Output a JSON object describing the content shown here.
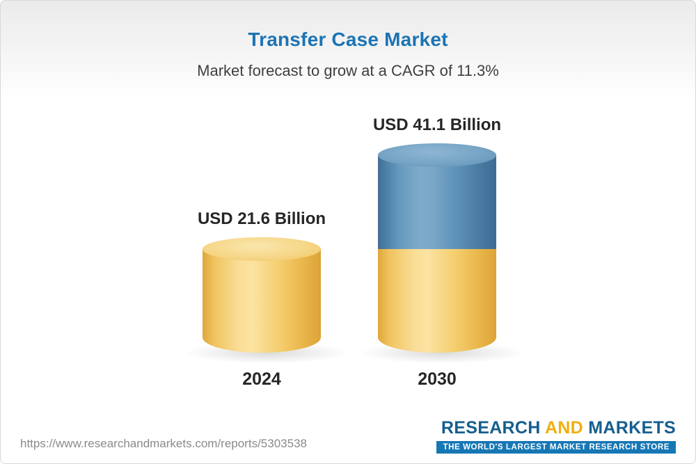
{
  "header": {
    "title": "Transfer Case Market",
    "subtitle": "Market forecast to grow at a CAGR of 11.3%"
  },
  "chart_data": {
    "type": "bar",
    "style": "3d-cylinder",
    "title": "Transfer Case Market",
    "subtitle": "Market forecast to grow at a CAGR of 11.3%",
    "cagr_percent": 11.3,
    "unit": "USD Billion",
    "categories": [
      "2024",
      "2030"
    ],
    "values": [
      21.6,
      41.1
    ],
    "value_labels": [
      "USD 21.6 Billion",
      "USD 41.1 Billion"
    ],
    "series_note": "2030 bar stacked: bottom segment equals 2024 value (yellow), top segment is growth (blue)",
    "colors": {
      "bar_2024": "#f3c75e",
      "bar_2030_growth": "#5f92b8",
      "title": "#1b74b4",
      "logo_blue": "#155e8f",
      "logo_gold": "#f1af0f"
    },
    "legend": "none",
    "grid": "off"
  },
  "footer": {
    "url": "https://www.researchandmarkets.com/reports/5303538",
    "logo": {
      "part1": "RESEARCH",
      "part2": "AND",
      "part3": "MARKETS",
      "tagline": "THE WORLD'S LARGEST MARKET RESEARCH STORE"
    }
  }
}
